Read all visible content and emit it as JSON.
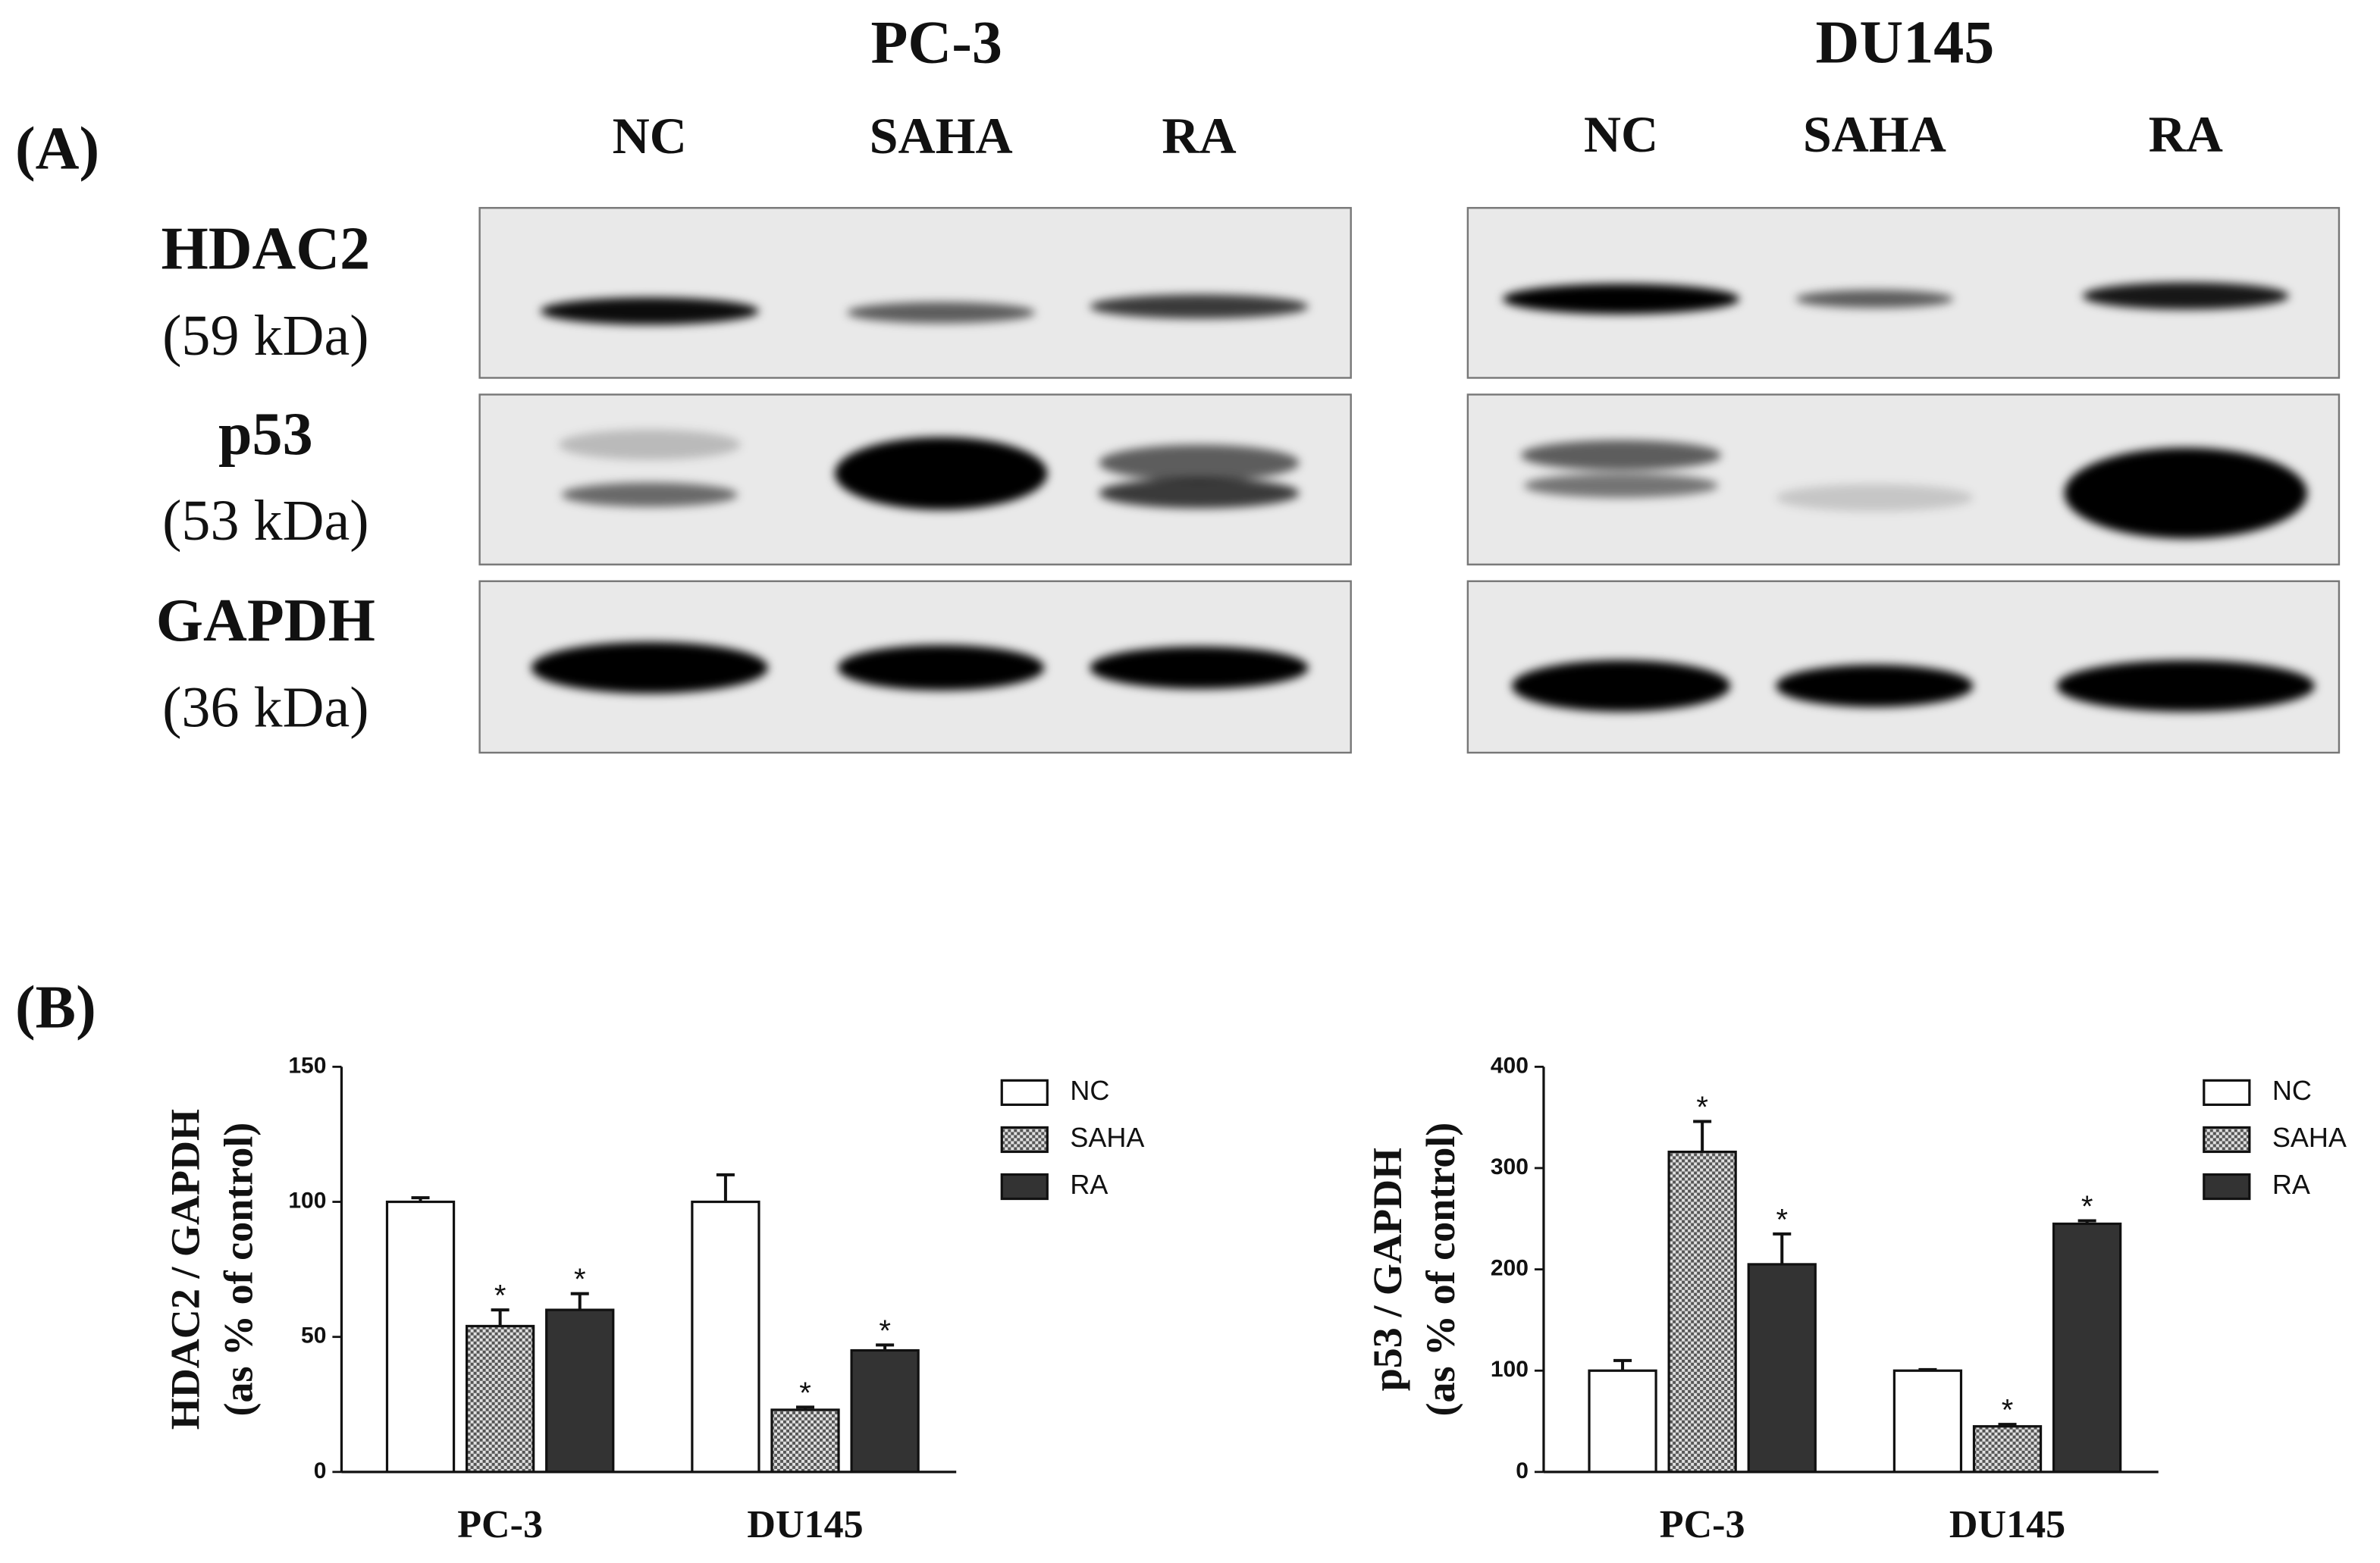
{
  "panel_a": {
    "label": "(A)",
    "cell_lines": [
      "PC-3",
      "DU145"
    ],
    "lanes": [
      "NC",
      "SAHA",
      "RA"
    ],
    "proteins": [
      {
        "name": "HDAC2",
        "size": "(59 kDa)"
      },
      {
        "name": "p53",
        "size": "(53 kDa)"
      },
      {
        "name": "GAPDH",
        "size": "(36 kDa)"
      }
    ]
  },
  "panel_b_label": "(B)",
  "chart_data": [
    {
      "type": "bar",
      "ylabel": [
        "HDAC2 / GAPDH",
        "(as % of control)"
      ],
      "categories": [
        "PC-3",
        "DU145"
      ],
      "series": [
        {
          "name": "NC",
          "color": "#ffffff",
          "values": [
            100,
            100
          ],
          "errors": [
            1.5,
            10
          ],
          "significant": [
            false,
            false
          ]
        },
        {
          "name": "SAHA",
          "color": "#8c8c8c",
          "pattern": "checker",
          "values": [
            54,
            23
          ],
          "errors": [
            6,
            1
          ],
          "significant": [
            true,
            true
          ]
        },
        {
          "name": "RA",
          "color": "#333333",
          "values": [
            60,
            45
          ],
          "errors": [
            6,
            2
          ],
          "significant": [
            true,
            true
          ]
        }
      ],
      "marker": "*",
      "ylim": [
        0,
        150
      ],
      "yticks": [
        0,
        50,
        100,
        150
      ],
      "legend": "right"
    },
    {
      "type": "bar",
      "ylabel": [
        "p53 / GAPDH",
        "(as % of control)"
      ],
      "categories": [
        "PC-3",
        "DU145"
      ],
      "series": [
        {
          "name": "NC",
          "color": "#ffffff",
          "values": [
            100,
            100
          ],
          "errors": [
            10,
            1
          ],
          "significant": [
            false,
            false
          ]
        },
        {
          "name": "SAHA",
          "color": "#8c8c8c",
          "pattern": "checker",
          "values": [
            316,
            45
          ],
          "errors": [
            30,
            2
          ],
          "significant": [
            true,
            true
          ]
        },
        {
          "name": "RA",
          "color": "#333333",
          "values": [
            205,
            245
          ],
          "errors": [
            30,
            3
          ],
          "significant": [
            true,
            true
          ]
        }
      ],
      "marker": "*",
      "ylim": [
        0,
        400
      ],
      "yticks": [
        0,
        100,
        200,
        300,
        400
      ],
      "legend": "right"
    }
  ]
}
